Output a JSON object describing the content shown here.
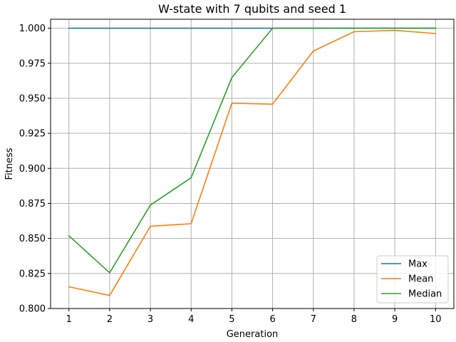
{
  "chart_data": {
    "type": "line",
    "title": "W-state with 7 qubits and seed 1",
    "xlabel": "Generation",
    "ylabel": "Fitness",
    "x": [
      1,
      2,
      3,
      4,
      5,
      6,
      7,
      8,
      9,
      10
    ],
    "xlim": [
      0.55,
      10.45
    ],
    "ylim": [
      0.8,
      1.0064
    ],
    "yticks": [
      0.8,
      0.825,
      0.85,
      0.875,
      0.9,
      0.925,
      0.95,
      0.975,
      1.0
    ],
    "ytick_labels": [
      "0.800",
      "0.825",
      "0.850",
      "0.875",
      "0.900",
      "0.925",
      "0.950",
      "0.975",
      "1.000"
    ],
    "grid": true,
    "legend_position": "bottom-right",
    "series": [
      {
        "name": "Max",
        "color": "#1f77b4",
        "values": [
          1.0,
          1.0,
          1.0,
          1.0,
          1.0,
          1.0,
          1.0,
          1.0,
          1.0,
          1.0
        ]
      },
      {
        "name": "Mean",
        "color": "#ff7f0e",
        "values": [
          0.8155,
          0.8093,
          0.8587,
          0.8605,
          0.9465,
          0.9458,
          0.9837,
          0.9975,
          0.9985,
          0.9962
        ]
      },
      {
        "name": "Median",
        "color": "#2ca02c",
        "values": [
          0.8519,
          0.8255,
          0.8738,
          0.8933,
          0.9648,
          1.0,
          1.0,
          1.0,
          1.0,
          1.0
        ]
      }
    ]
  }
}
